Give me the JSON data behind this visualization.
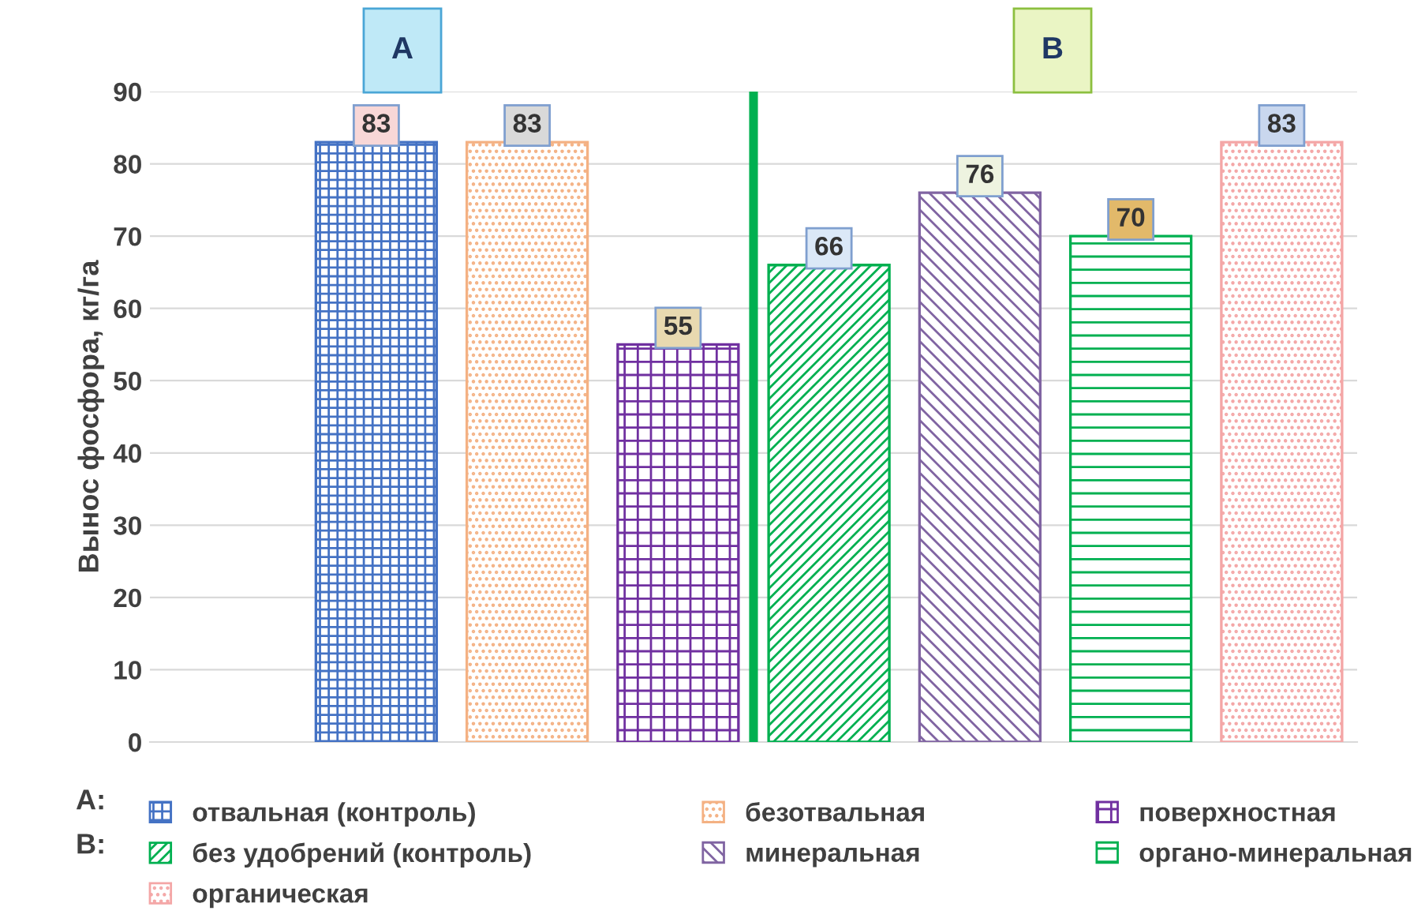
{
  "chart_data": {
    "type": "bar",
    "ylabel": "Вынос фосфора, кг/га",
    "categories": [
      null,
      null,
      null,
      null,
      null,
      null,
      null,
      null
    ],
    "series": [
      {
        "name": "отвальная (контроль)",
        "color": "#4472c4",
        "values": [
          null,
          83,
          null,
          null,
          null,
          null,
          null,
          null
        ]
      },
      {
        "name": "безотвальная",
        "color": "#f4b183",
        "values": [
          null,
          null,
          83,
          null,
          null,
          null,
          null,
          null
        ]
      },
      {
        "name": "поверхностная",
        "color": "#7030a0",
        "values": [
          null,
          null,
          null,
          55,
          null,
          null,
          null,
          null
        ]
      },
      {
        "name": "без удобрений (контроль)",
        "color": "#00b050",
        "values": [
          null,
          null,
          null,
          null,
          66,
          null,
          null,
          null
        ]
      },
      {
        "name": "минеральная",
        "color": "#8064a2",
        "values": [
          null,
          null,
          null,
          null,
          null,
          76,
          null,
          null
        ]
      },
      {
        "name": "органо-минеральная",
        "color": "#00b050",
        "values": [
          null,
          null,
          null,
          null,
          null,
          null,
          70,
          null
        ]
      },
      {
        "name": "органическая",
        "color": "#f4a6a6",
        "values": [
          null,
          null,
          null,
          null,
          null,
          null,
          null,
          83
        ]
      }
    ],
    "ylim": [
      0,
      90
    ],
    "yticks": [
      0,
      10,
      20,
      30,
      40,
      50,
      60,
      70,
      80,
      90
    ],
    "grid": "y",
    "data_labels": true,
    "legend": "bottom",
    "annotations": [
      "A",
      "B",
      "A:",
      "B:"
    ]
  }
}
